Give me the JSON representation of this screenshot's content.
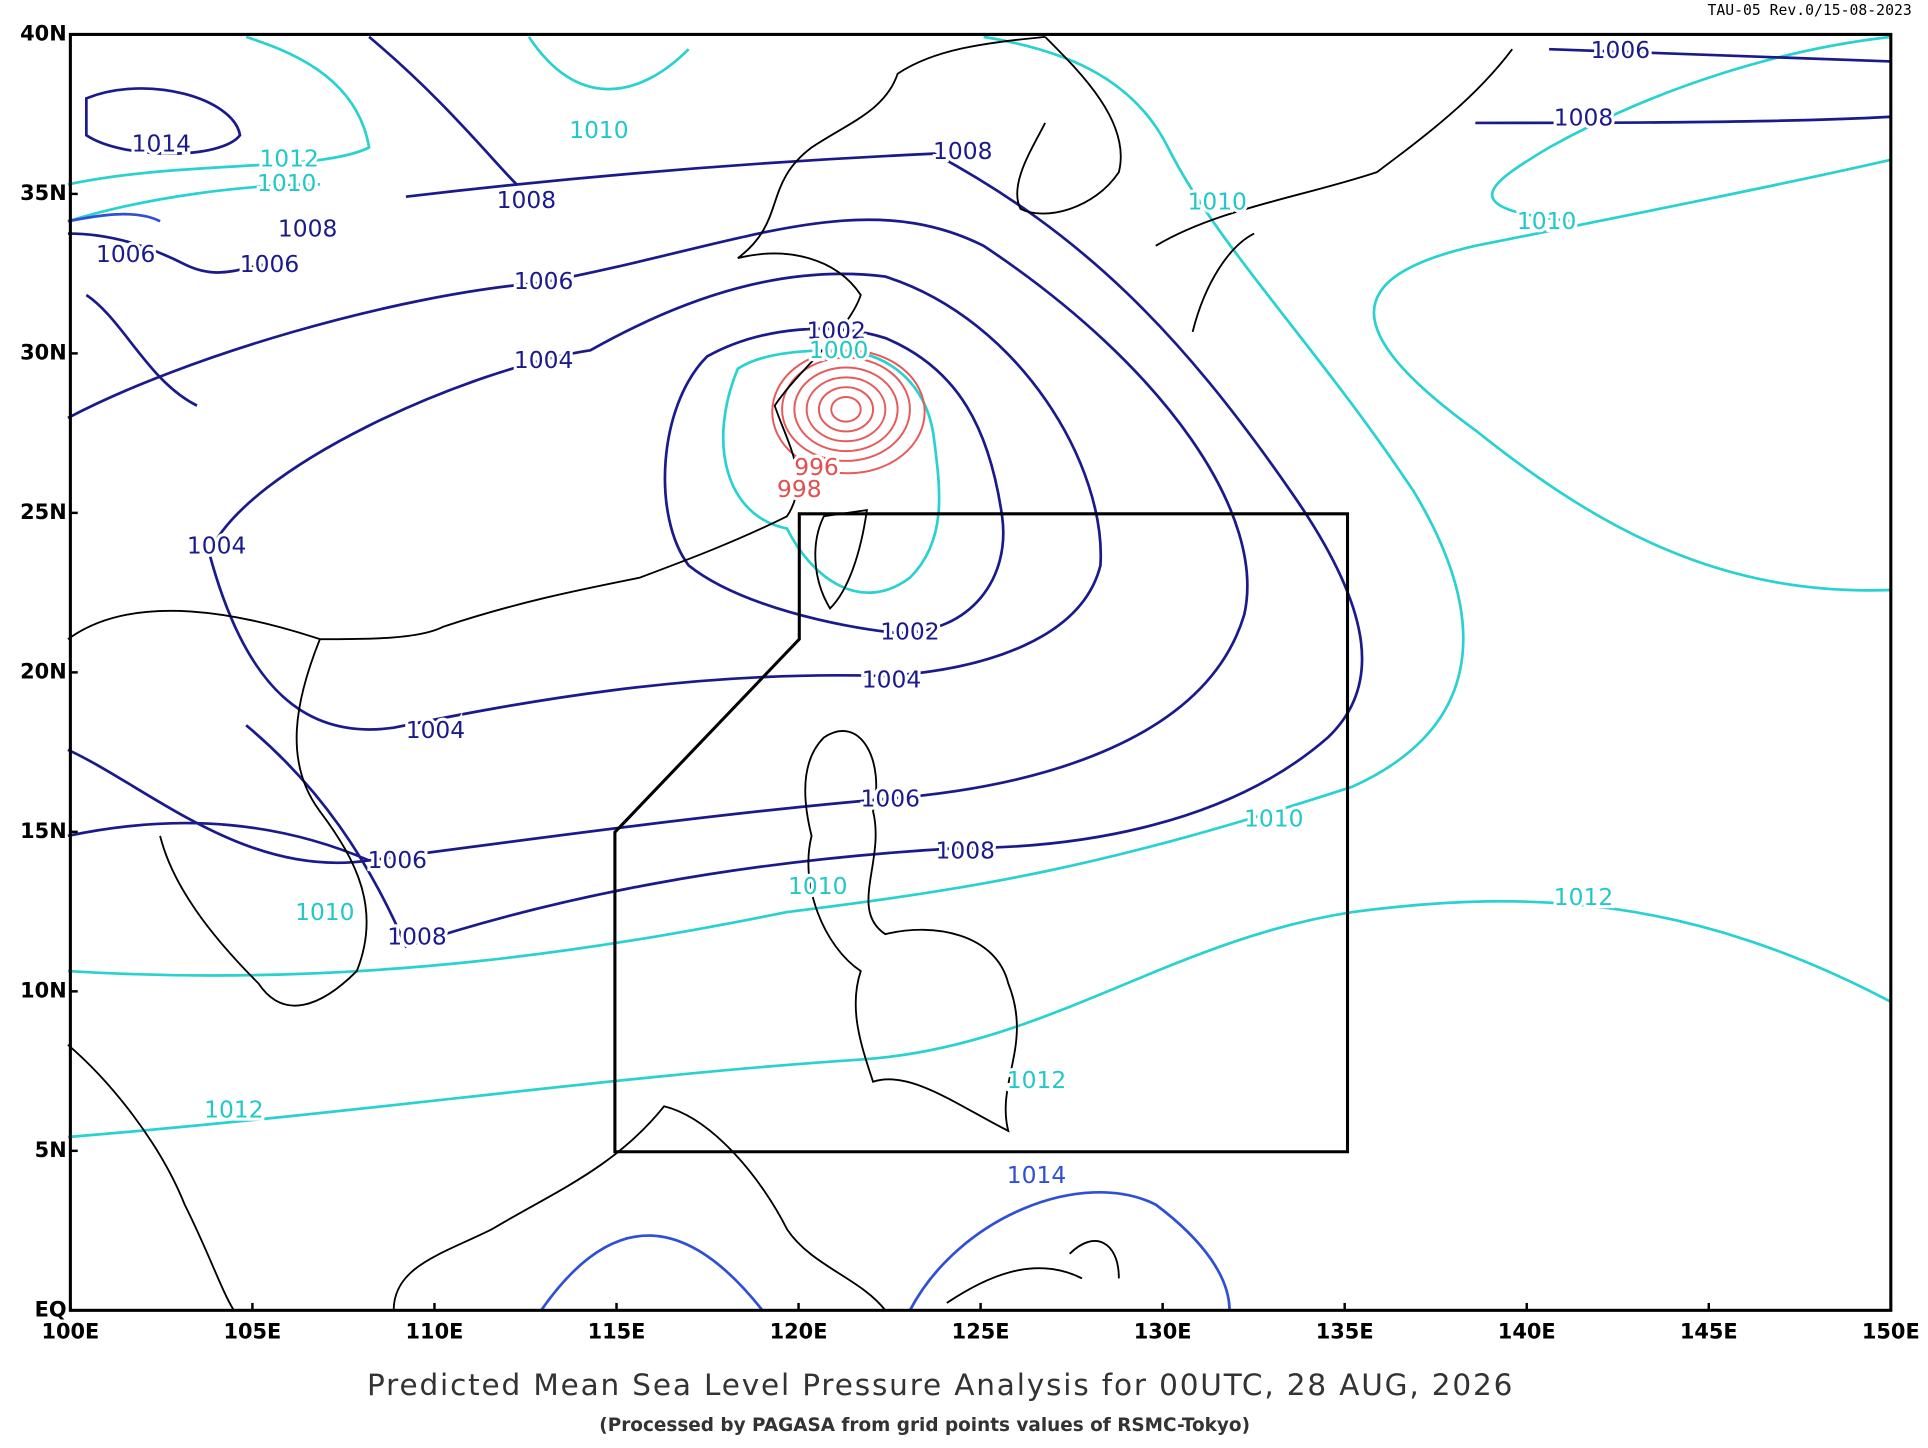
{
  "header": {
    "revision": "TAU-05 Rev.0/15-08-2023"
  },
  "map": {
    "latitude_labels": [
      "40N",
      "35N",
      "30N",
      "25N",
      "20N",
      "15N",
      "10N",
      "5N",
      "EQ"
    ],
    "longitude_labels": [
      "100E",
      "105E",
      "110E",
      "115E",
      "120E",
      "125E",
      "130E",
      "135E",
      "140E",
      "145E",
      "150E"
    ],
    "isobar_labels": [
      1006,
      1008,
      1010,
      1014,
      1012,
      1010,
      1008,
      1008,
      1010,
      1010,
      1008,
      1006,
      1006,
      1006,
      1002,
      1000,
      1004,
      996,
      998,
      1004,
      1002,
      1004,
      1004,
      1006,
      1010,
      1008,
      1006,
      1010,
      1012,
      1010,
      1008,
      1012,
      1012,
      1014
    ]
  },
  "footer": {
    "title": "Predicted Mean Sea Level Pressure Analysis for 00UTC, 28 AUG, 2026",
    "subtitle": "(Processed by PAGASA from grid points values of RSMC-Tokyo)"
  }
}
